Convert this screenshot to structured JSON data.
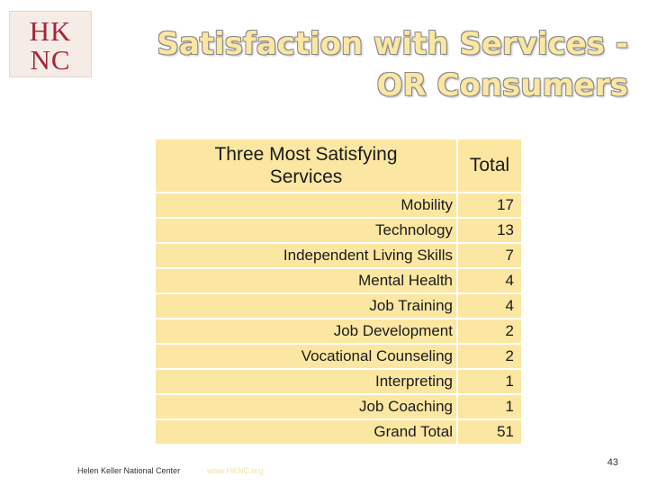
{
  "logo": {
    "line1": "HK",
    "line2": "NC"
  },
  "title": {
    "line1": "Satisfaction with Services -",
    "line2": "OR Consumers"
  },
  "table": {
    "header": {
      "service": "Three Most Satisfying Services",
      "total": "Total"
    },
    "rows": [
      {
        "service": "Mobility",
        "total": "17"
      },
      {
        "service": "Technology",
        "total": "13"
      },
      {
        "service": "Independent Living Skills",
        "total": "7"
      },
      {
        "service": "Mental Health",
        "total": "4"
      },
      {
        "service": "Job Training",
        "total": "4"
      },
      {
        "service": "Job Development",
        "total": "2"
      },
      {
        "service": "Vocational Counseling",
        "total": "2"
      },
      {
        "service": "Interpreting",
        "total": "1"
      },
      {
        "service": "Job Coaching",
        "total": "1"
      },
      {
        "service": "Grand Total",
        "total": "51"
      }
    ]
  },
  "footer": {
    "org": "Helen Keller National Center",
    "url": "www.HKNC.org",
    "page": "43"
  },
  "colors": {
    "cell_bg": "#fbe7a2",
    "logo_red": "#a3263a"
  }
}
